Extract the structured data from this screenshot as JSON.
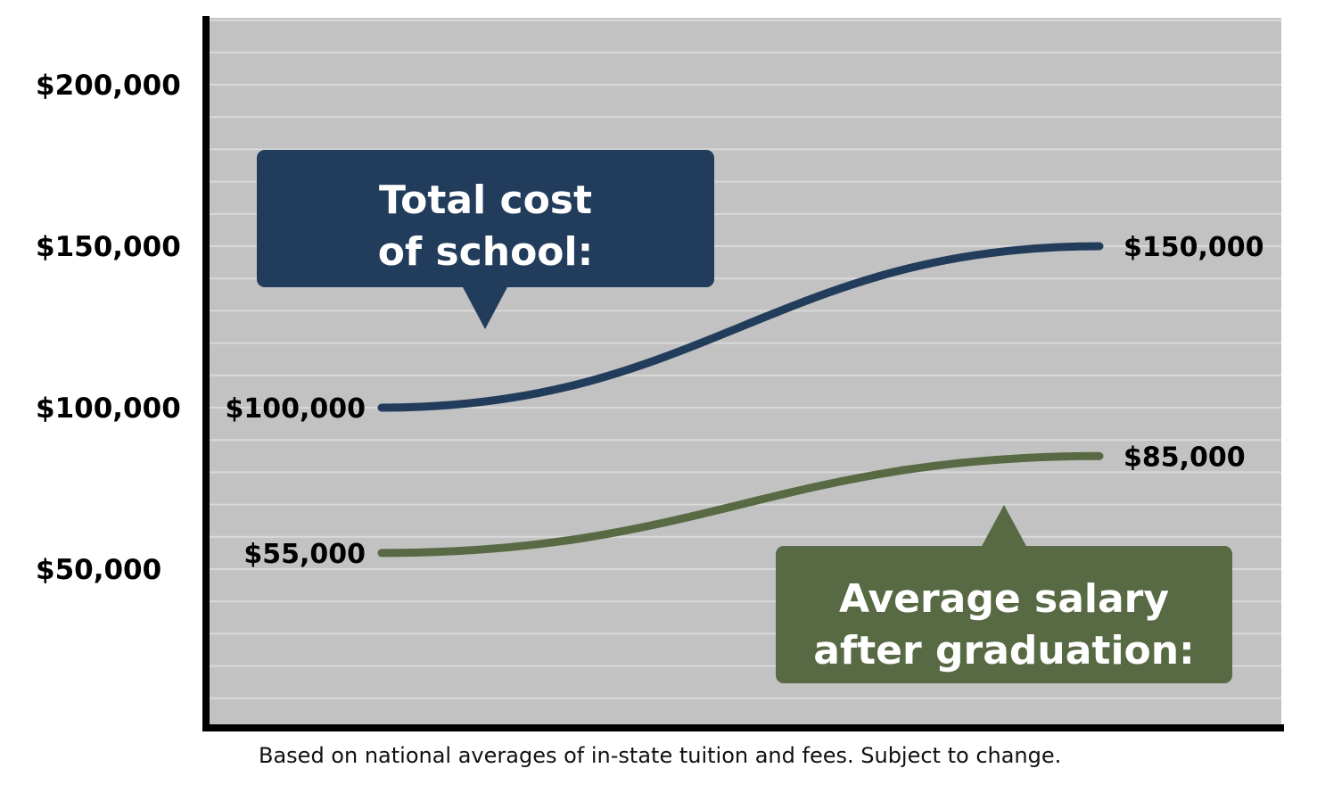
{
  "chart_data": {
    "type": "line",
    "ylim": [
      0,
      220000
    ],
    "y_ticks": [
      {
        "value": 50000,
        "label": "$50,000"
      },
      {
        "value": 100000,
        "label": "$100,000"
      },
      {
        "value": 150000,
        "label": "$150,000"
      },
      {
        "value": 200000,
        "label": "$200,000"
      }
    ],
    "grid": true,
    "series": [
      {
        "name": "Total cost of school:",
        "name_lines": [
          "Total cost",
          "of school:"
        ],
        "color": "#223c5c",
        "values": [
          100000,
          150000
        ],
        "labels": [
          "$100,000",
          "$150,000"
        ]
      },
      {
        "name": "Average salary after graduation:",
        "name_lines": [
          "Average salary",
          "after graduation:"
        ],
        "color": "#586a44",
        "values": [
          55000,
          85000
        ],
        "labels": [
          "$55,000",
          "$85,000"
        ]
      }
    ],
    "colors": {
      "plot_background": "#c2c2c2",
      "grid_line": "#d9d9d9",
      "axis": "#000000"
    }
  },
  "footnote": "Based on national averages of in-state tuition and fees. Subject to change."
}
